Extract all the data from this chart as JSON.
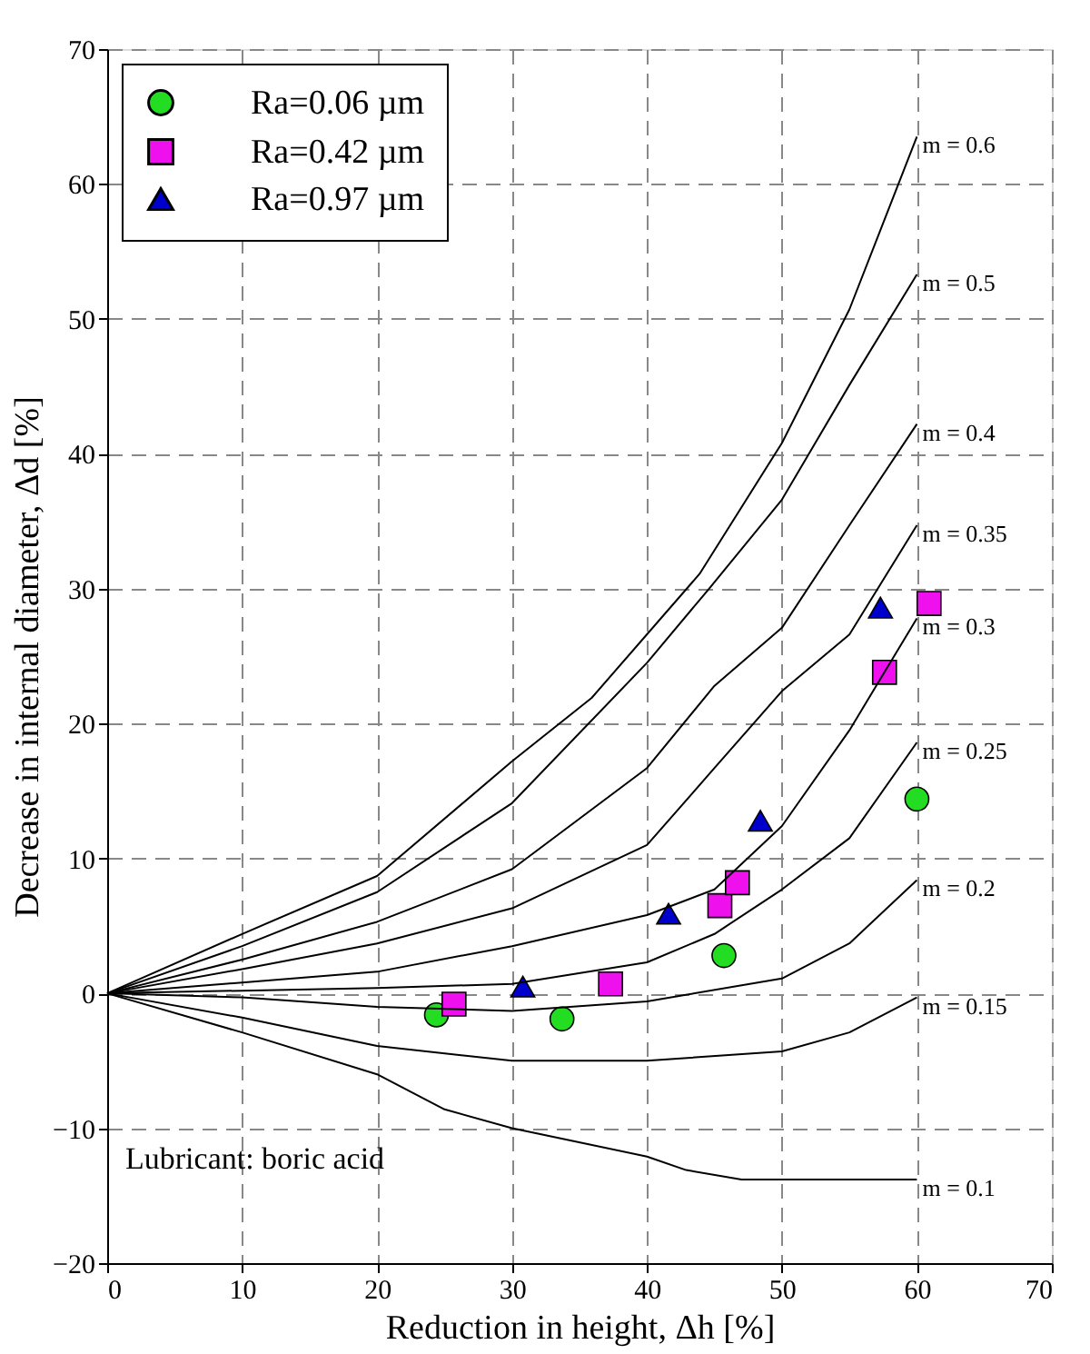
{
  "chart_data": {
    "type": "scatter",
    "xlabel": "Reduction in height, Δh [%]",
    "ylabel": "Decrease in internal diameter, Δd [%]",
    "xlim": [
      0,
      70
    ],
    "xticks": [
      0,
      10,
      20,
      30,
      40,
      50,
      60,
      70
    ],
    "ylim": [
      -20,
      70
    ],
    "yticks": [
      -20,
      -10,
      0,
      10,
      20,
      30,
      40,
      50,
      60,
      70
    ],
    "grid": true,
    "legend": "top left",
    "line_style": "solid",
    "annotations": [
      "Lubricant: boric acid"
    ],
    "series": [
      {
        "name": "Ra=0.06 µm",
        "marker": "circle",
        "color": "#22dd22",
        "x": [
          24.4,
          33.7,
          45.7,
          60.0
        ],
        "values": [
          -1.6,
          -1.9,
          2.8,
          14.4
        ]
      },
      {
        "name": "Ra=0.42 µm",
        "marker": "square",
        "color": "#ee11ee",
        "x": [
          25.7,
          37.3,
          45.4,
          46.7,
          57.6,
          60.9
        ],
        "values": [
          -0.8,
          0.7,
          6.5,
          8.2,
          23.8,
          28.9
        ]
      },
      {
        "name": "Ra=0.97 µm",
        "marker": "triangle",
        "color": "#0000cc",
        "x": [
          30.8,
          41.6,
          48.4,
          57.3
        ],
        "values": [
          0.5,
          5.9,
          12.8,
          28.6
        ]
      },
      {
        "name": "m = 0.6",
        "type": "line",
        "marker": "none",
        "color": "#000000",
        "x": [
          0,
          10,
          20,
          30,
          35.9,
          43.9,
          50,
          55,
          60
        ],
        "values": [
          0,
          4.4,
          8.7,
          17.2,
          21.9,
          31.1,
          40.8,
          50.7,
          63.5
        ]
      },
      {
        "name": "m = 0.5",
        "type": "line",
        "marker": "none",
        "color": "#000000",
        "x": [
          0,
          10,
          20,
          30,
          40,
          44.6,
          50,
          55,
          60
        ],
        "values": [
          0,
          3.5,
          7.5,
          14.1,
          24.5,
          30,
          36.6,
          45.1,
          53.3
        ]
      },
      {
        "name": "m = 0.4",
        "type": "line",
        "marker": "none",
        "color": "#000000",
        "x": [
          0,
          10,
          20,
          30,
          40,
          45,
          50,
          55,
          60
        ],
        "values": [
          0,
          2.5,
          5.3,
          9.2,
          16.7,
          22.8,
          27.1,
          34.7,
          42.2
        ]
      },
      {
        "name": "m = 0.35",
        "type": "line",
        "marker": "none",
        "color": "#000000",
        "x": [
          0,
          10,
          20,
          30,
          40,
          45,
          50,
          55,
          60
        ],
        "values": [
          0,
          1.8,
          3.7,
          6.3,
          11,
          16.7,
          22.4,
          26.6,
          34.7
        ]
      },
      {
        "name": "m = 0.3",
        "type": "line",
        "marker": "none",
        "color": "#000000",
        "x": [
          0,
          10,
          20,
          30,
          40,
          45,
          50,
          55,
          60
        ],
        "values": [
          0,
          0.8,
          1.6,
          3.5,
          5.8,
          7.7,
          12.4,
          19.5,
          27.8
        ]
      },
      {
        "name": "m = 0.25",
        "type": "line",
        "marker": "none",
        "color": "#000000",
        "x": [
          0,
          10,
          20,
          30,
          40,
          45,
          50,
          55,
          60
        ],
        "values": [
          0,
          0.2,
          0.4,
          0.7,
          2.3,
          4.4,
          7.7,
          11.5,
          18.6
        ]
      },
      {
        "name": "m = 0.2",
        "type": "line",
        "marker": "none",
        "color": "#000000",
        "x": [
          0,
          10,
          20,
          30,
          40,
          50,
          55,
          60
        ],
        "values": [
          0,
          -0.3,
          -1.0,
          -1.3,
          -0.6,
          1.1,
          3.7,
          8.4
        ]
      },
      {
        "name": "m = 0.15",
        "type": "line",
        "marker": "none",
        "color": "#000000",
        "x": [
          0,
          10,
          20,
          30,
          40,
          50,
          55,
          60
        ],
        "values": [
          0,
          -1.8,
          -3.9,
          -5.0,
          -5.0,
          -4.3,
          -2.9,
          -0.3
        ]
      },
      {
        "name": "m = 0.1",
        "type": "line",
        "marker": "none",
        "color": "#000000",
        "x": [
          0,
          10,
          20,
          25,
          30,
          40,
          42.9,
          47,
          60
        ],
        "values": [
          0,
          -2.9,
          -6.0,
          -8.6,
          -10.0,
          -12.1,
          -13.1,
          -13.8,
          -13.8
        ]
      }
    ]
  }
}
